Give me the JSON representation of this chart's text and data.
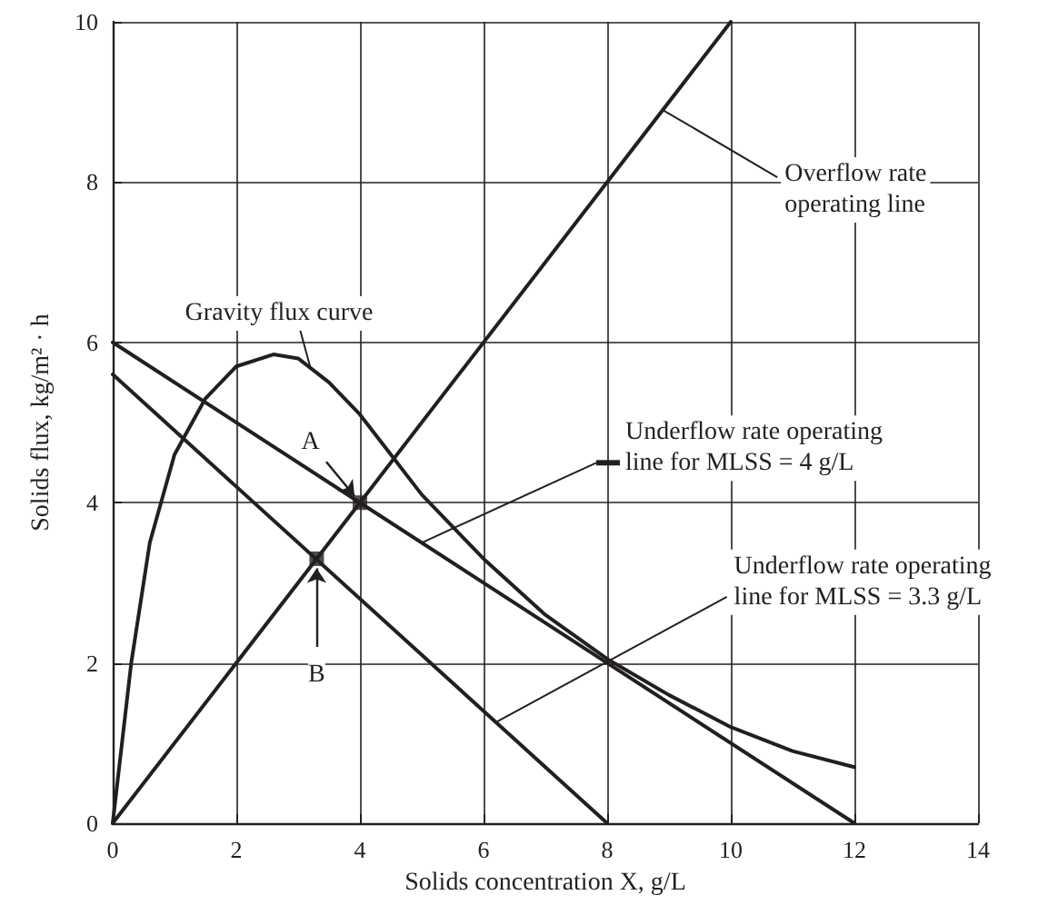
{
  "chart_data": {
    "type": "line",
    "xlabel": "Solids concentration X, g/L",
    "ylabel": "Solids flux, kg/m² · h",
    "xlim": [
      0,
      14
    ],
    "xticks": [
      0,
      2,
      4,
      6,
      8,
      10,
      12,
      14
    ],
    "ylim": [
      0,
      10
    ],
    "yticks": [
      0,
      2,
      4,
      6,
      8,
      10
    ],
    "grid": true,
    "line_style": "solid",
    "series": [
      {
        "name": "Gravity flux curve",
        "color": "#231f20",
        "x": [
          0,
          0.3,
          0.6,
          1,
          1.5,
          2,
          2.6,
          3,
          3.5,
          4,
          4.5,
          5,
          6,
          7,
          8,
          9,
          10,
          11,
          12
        ],
        "values": [
          0,
          2,
          3.5,
          4.6,
          5.3,
          5.7,
          5.85,
          5.8,
          5.5,
          5.1,
          4.6,
          4.1,
          3.3,
          2.6,
          2.05,
          1.6,
          1.2,
          0.9,
          0.7
        ]
      },
      {
        "name": "Overflow rate\noperating line",
        "color": "#231f20",
        "x": [
          0,
          10
        ],
        "values": [
          0,
          10
        ]
      },
      {
        "name": "Underflow rate operating\nline for MLSS = 4 g/L",
        "color": "#231f20",
        "x": [
          0,
          4,
          8,
          12
        ],
        "values": [
          6,
          4,
          2,
          0
        ]
      },
      {
        "name": "Underflow rate operating\nline for MLSS = 3.3 g/L",
        "color": "#231f20",
        "x": [
          0,
          8
        ],
        "values": [
          5.6,
          0
        ]
      },
      {
        "type": "scatter",
        "marker": "square",
        "color": "#231f20",
        "x": [
          4,
          3.3
        ],
        "values": [
          4,
          3.3
        ]
      }
    ],
    "annotations": [
      {
        "text": "A",
        "x": 3.2,
        "y": 4.75
      },
      {
        "text": "B",
        "x": 3.3,
        "y": 1.85
      }
    ]
  }
}
